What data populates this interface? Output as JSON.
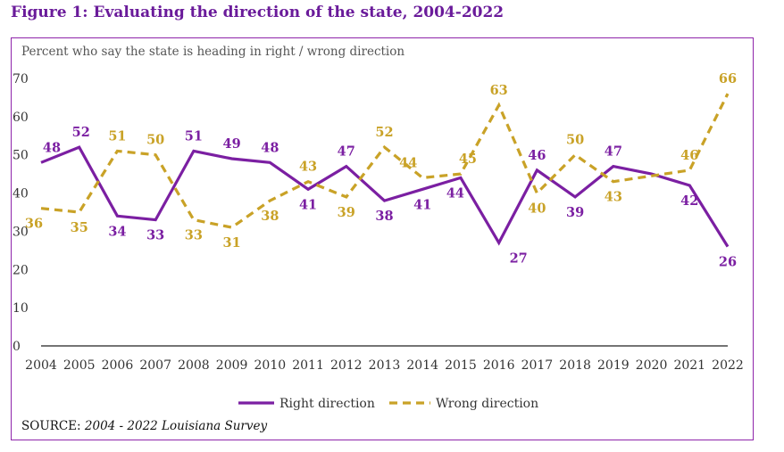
{
  "figure_title": "Figure 1: Evaluating the direction of the state, 2004-2022",
  "source_label": "SOURCE: ",
  "source_text": "2004 - 2022 Louisiana Survey",
  "chart_data": {
    "type": "line",
    "subtitle": "Percent who say the state is heading in right / wrong direction",
    "categories": [
      "2004",
      "2005",
      "2006",
      "2007",
      "2008",
      "2009",
      "2010",
      "2011",
      "2012",
      "2013",
      "2014",
      "2015",
      "2016",
      "2017",
      "2018",
      "2019",
      "2020",
      "2021",
      "2022"
    ],
    "ylim": [
      0,
      70
    ],
    "yticks": [
      0,
      10,
      20,
      30,
      40,
      50,
      60,
      70
    ],
    "grid": false,
    "legend_position": "bottom",
    "series": [
      {
        "name": "Right direction",
        "color": "#7b1fa2",
        "style": "solid",
        "values": [
          48,
          52,
          34,
          33,
          51,
          49,
          48,
          41,
          47,
          38,
          41,
          44,
          27,
          46,
          39,
          47,
          null,
          42,
          26
        ]
      },
      {
        "name": "Wrong direction",
        "color": "#c9a227",
        "style": "dashed",
        "values": [
          36,
          35,
          51,
          50,
          33,
          31,
          38,
          43,
          39,
          52,
          44,
          45,
          63,
          40,
          50,
          43,
          null,
          46,
          66
        ]
      }
    ],
    "line_points": {
      "Right direction": [
        48,
        52,
        34,
        33,
        51,
        49,
        48,
        41,
        47,
        38,
        41,
        44,
        27,
        46,
        39,
        47,
        45,
        42,
        26
      ],
      "Wrong direction": [
        36,
        35,
        51,
        50,
        33,
        31,
        38,
        43,
        39,
        52,
        44,
        45,
        63,
        40,
        50,
        43,
        44.5,
        46,
        66
      ]
    }
  }
}
